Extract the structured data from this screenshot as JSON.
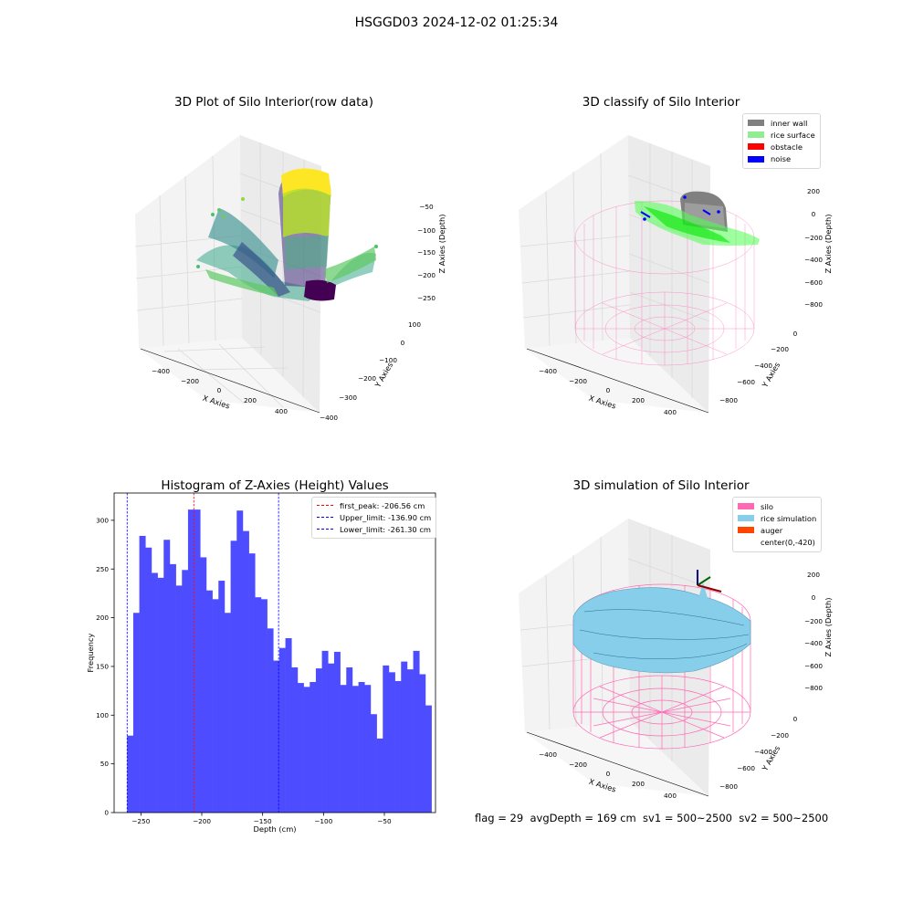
{
  "figure_title": "HSGGD03 2024-12-02 01:25:34",
  "status_text": "flag = 29  avgDepth = 169 cm  sv1 = 500~2500  sv2 = 500~2500",
  "colors": {
    "histogram_bar": "#4d4dff",
    "first_peak_line": "#ff0000",
    "limit_lines": "#0000ff",
    "inner_wall": "#808080",
    "rice_surface": "#90ee90",
    "obstacle": "#ff0000",
    "noise": "#0000ff",
    "silo": "#ff69b4",
    "rice_simulation": "#87ceeb",
    "auger": "#ff4500",
    "pane": "#f2f2f2",
    "grid": "#dcdcdc"
  },
  "panels": {
    "raw": {
      "title": "3D Plot of Silo Interior(row data)",
      "xlabel": "X Axies",
      "ylabel": "Y Axies",
      "zlabel": "Z Axies (Depth)",
      "x_ticks": [
        "−400",
        "−200",
        "0",
        "200",
        "400"
      ],
      "y_ticks": [
        "100",
        "0",
        "−100",
        "−200",
        "−300",
        "−400"
      ],
      "z_ticks": [
        "−50",
        "−100",
        "−150",
        "−200",
        "−250"
      ]
    },
    "classify": {
      "title": "3D classify of Silo Interior",
      "xlabel": "X Axies",
      "ylabel": "Y Axies",
      "zlabel": "Z Axies (Depth)",
      "x_ticks": [
        "−400",
        "−200",
        "0",
        "200",
        "400"
      ],
      "y_ticks": [
        "0",
        "−200",
        "−400",
        "−600",
        "−800"
      ],
      "z_ticks": [
        "200",
        "0",
        "−200",
        "−400",
        "−600",
        "−800"
      ],
      "legend": [
        {
          "label": "inner wall",
          "color": "#808080"
        },
        {
          "label": "rice surface",
          "color": "#90ee90"
        },
        {
          "label": "obstacle",
          "color": "#ff0000"
        },
        {
          "label": "noise",
          "color": "#0000ff"
        }
      ]
    },
    "simulation": {
      "title": "3D simulation of Silo Interior",
      "xlabel": "X Axies",
      "ylabel": "Y Axies",
      "zlabel": "Z Axies (Depth)",
      "x_ticks": [
        "−400",
        "−200",
        "0",
        "200",
        "400"
      ],
      "y_ticks": [
        "0",
        "−200",
        "−400",
        "−600",
        "−800"
      ],
      "z_ticks": [
        "200",
        "0",
        "−200",
        "−400",
        "−600",
        "−800"
      ],
      "legend": [
        {
          "label": "silo",
          "color": "#ff69b4"
        },
        {
          "label": "rice simulation",
          "color": "#87ceeb"
        },
        {
          "label": "auger",
          "color": "#ff4500"
        },
        {
          "label": "center(0,-420)",
          "color": "#ffffff"
        }
      ]
    }
  },
  "chart_data": [
    {
      "type": "bar",
      "title": "Histogram of Z-Axies (Height) Values",
      "xlabel": "Depth (cm)",
      "ylabel": "Frequency",
      "xlim": [
        -272,
        -8
      ],
      "ylim": [
        0,
        328
      ],
      "x_ticks": [
        -250,
        -200,
        -150,
        -100,
        -50
      ],
      "x_tick_labels": [
        "−250",
        "−200",
        "−150",
        "−100",
        "−50"
      ],
      "y_ticks": [
        0,
        50,
        100,
        150,
        200,
        250,
        300
      ],
      "y_tick_labels": [
        "0",
        "50",
        "100",
        "150",
        "200",
        "250",
        "300"
      ],
      "bin_start": -261.3,
      "bin_width": 5.0,
      "values": [
        79,
        205,
        284,
        272,
        246,
        241,
        280,
        255,
        233,
        249,
        311,
        311,
        262,
        228,
        219,
        238,
        205,
        279,
        310,
        289,
        266,
        221,
        219,
        189,
        156,
        169,
        179,
        149,
        133,
        129,
        134,
        148,
        166,
        153,
        165,
        131,
        149,
        130,
        134,
        131,
        101,
        76,
        151,
        144,
        135,
        155,
        147,
        166,
        142,
        110
      ],
      "lines": [
        {
          "label": "first_peak: -206.56 cm",
          "x": -206.56,
          "color": "#ff0000"
        },
        {
          "label": "Upper_limit: -136.90 cm",
          "x": -136.9,
          "color": "#0000ff"
        },
        {
          "label": "Lower_limit: -261.30 cm",
          "x": -261.3,
          "color": "#0000ff"
        }
      ],
      "legend_position": "upper right"
    }
  ]
}
